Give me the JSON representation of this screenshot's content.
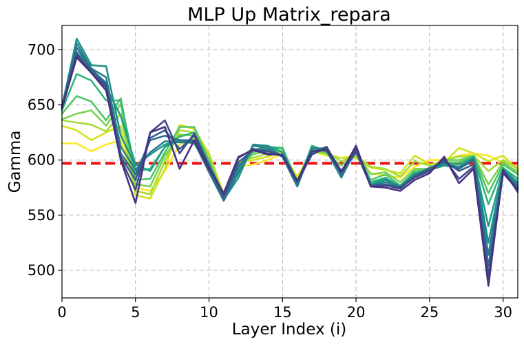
{
  "chart_data": {
    "type": "line",
    "title": "MLP Up Matrix_repara",
    "xlabel": "Layer Index (i)",
    "ylabel": "Gamma",
    "xlim": [
      0,
      31
    ],
    "ylim": [
      475,
      722
    ],
    "xticks": [
      0,
      5,
      10,
      15,
      20,
      25,
      30
    ],
    "yticks": [
      500,
      550,
      600,
      650,
      700
    ],
    "grid": true,
    "reference_line": {
      "y": 597,
      "color": "#ee1111",
      "style": "dashed"
    },
    "colormap": "viridis",
    "x": [
      0,
      1,
      2,
      3,
      4,
      5,
      6,
      7,
      8,
      9,
      10,
      11,
      12,
      13,
      14,
      15,
      16,
      17,
      18,
      19,
      20,
      21,
      22,
      23,
      24,
      25,
      26,
      27,
      28,
      29,
      30,
      31
    ],
    "series": [
      {
        "color": "#fde725",
        "values": [
          615,
          615,
          608,
          614,
          618,
          575,
          572,
          590,
          614,
          620,
          604,
          570,
          594,
          596,
          600,
          606,
          585,
          608,
          604,
          602,
          604,
          588,
          586,
          584,
          594,
          600,
          600,
          604,
          606,
          604,
          598,
          594
        ]
      },
      {
        "color": "#d2e21b",
        "values": [
          631,
          627,
          618,
          625,
          631,
          568,
          565,
          592,
          632,
          628,
          606,
          569,
          598,
          600,
          603,
          608,
          583,
          608,
          605,
          602,
          602,
          593,
          591,
          588,
          604,
          596,
          598,
          611,
          606,
          599,
          604,
          591
        ]
      },
      {
        "color": "#a5db36",
        "values": [
          636,
          634,
          632,
          626,
          642,
          572,
          569,
          599,
          627,
          625,
          604,
          568,
          599,
          602,
          606,
          609,
          582,
          609,
          607,
          599,
          604,
          594,
          592,
          585,
          599,
          595,
          600,
          603,
          604,
          590,
          600,
          592
        ]
      },
      {
        "color": "#7ad151",
        "values": [
          637,
          642,
          645,
          631,
          651,
          578,
          576,
          604,
          623,
          622,
          600,
          566,
          595,
          605,
          609,
          611,
          580,
          609,
          606,
          595,
          607,
          587,
          589,
          580,
          592,
          592,
          600,
          600,
          604,
          578,
          598,
          589
        ]
      },
      {
        "color": "#52c569",
        "values": [
          642,
          658,
          653,
          636,
          656,
          582,
          583,
          607,
          630,
          630,
          599,
          566,
          592,
          607,
          611,
          611,
          580,
          612,
          607,
          590,
          608,
          582,
          587,
          577,
          590,
          592,
          598,
          598,
          604,
          570,
          596,
          587
        ]
      },
      {
        "color": "#2fb47c",
        "values": [
          645,
          678,
          672,
          654,
          654,
          590,
          592,
          612,
          621,
          625,
          597,
          566,
          591,
          609,
          612,
          611,
          579,
          613,
          608,
          587,
          610,
          580,
          584,
          576,
          588,
          591,
          597,
          596,
          603,
          560,
          593,
          583
        ]
      },
      {
        "color": "#1fa187",
        "values": [
          646,
          698,
          682,
          666,
          640,
          596,
          590,
          612,
          617,
          615,
          592,
          565,
          588,
          613,
          613,
          607,
          577,
          612,
          608,
          584,
          610,
          578,
          583,
          576,
          588,
          591,
          596,
          594,
          602,
          540,
          592,
          580
        ]
      },
      {
        "color": "#21918c",
        "values": [
          648,
          710,
          686,
          685,
          622,
          595,
          605,
          614,
          618,
          618,
          589,
          564,
          584,
          614,
          613,
          603,
          576,
          611,
          609,
          584,
          610,
          577,
          582,
          576,
          587,
          591,
          595,
          593,
          602,
          525,
          591,
          578
        ]
      },
      {
        "color": "#277f8e",
        "values": [
          649,
          706,
          683,
          675,
          612,
          591,
          607,
          617,
          616,
          616,
          589,
          563,
          589,
          613,
          611,
          603,
          576,
          610,
          611,
          585,
          609,
          576,
          580,
          576,
          586,
          593,
          597,
          593,
          601,
          514,
          590,
          577
        ]
      },
      {
        "color": "#2e6e8e",
        "values": [
          649,
          702,
          682,
          670,
          606,
          587,
          618,
          622,
          618,
          617,
          590,
          564,
          594,
          610,
          609,
          603,
          578,
          607,
          612,
          587,
          607,
          577,
          578,
          575,
          585,
          593,
          598,
          592,
          600,
          504,
          589,
          575
        ]
      },
      {
        "color": "#365c8d",
        "values": [
          648,
          697,
          680,
          668,
          603,
          582,
          620,
          627,
          610,
          622,
          594,
          566,
          598,
          609,
          608,
          604,
          580,
          605,
          612,
          589,
          607,
          577,
          577,
          574,
          585,
          592,
          599,
          590,
          596,
          496,
          588,
          574
        ]
      },
      {
        "color": "#3e4989",
        "values": [
          647,
          695,
          679,
          666,
          601,
          573,
          625,
          636,
          606,
          624,
          595,
          569,
          602,
          610,
          606,
          604,
          581,
          605,
          611,
          590,
          610,
          576,
          577,
          575,
          584,
          590,
          601,
          583,
          594,
          491,
          588,
          573
        ]
      },
      {
        "color": "#46327e",
        "values": [
          647,
          693,
          679,
          663,
          600,
          561,
          625,
          630,
          592,
          618,
          592,
          570,
          603,
          609,
          605,
          605,
          581,
          608,
          609,
          589,
          613,
          576,
          575,
          572,
          582,
          588,
          603,
          579,
          592,
          486,
          591,
          571
        ]
      }
    ]
  }
}
